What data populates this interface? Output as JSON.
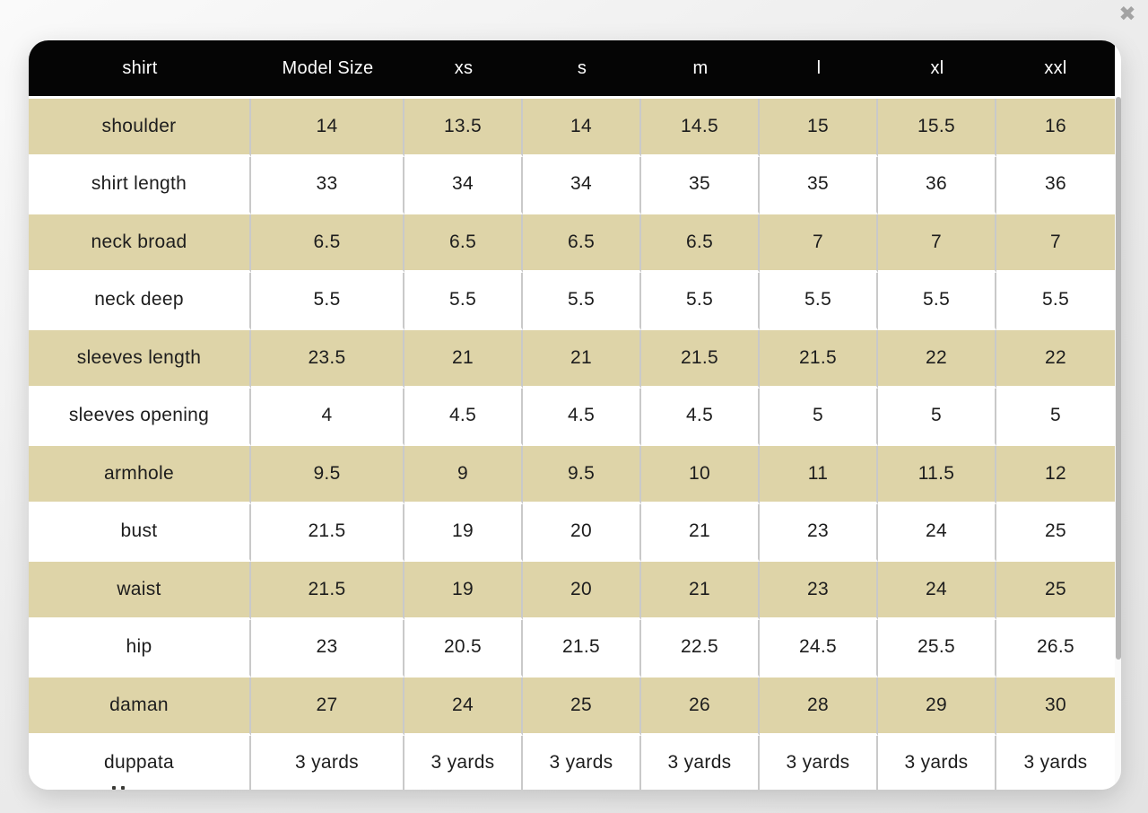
{
  "overlay": {
    "close_icon": "✖"
  },
  "size_chart": {
    "columns": [
      "shirt",
      "Model Size",
      "xs",
      "s",
      "m",
      "l",
      "xl",
      "xxl"
    ],
    "rows": [
      {
        "label": "shoulder",
        "values": [
          "14",
          "13.5",
          "14",
          "14.5",
          "15",
          "15.5",
          "16"
        ]
      },
      {
        "label": "shirt length",
        "values": [
          "33",
          "34",
          "34",
          "35",
          "35",
          "36",
          "36"
        ]
      },
      {
        "label": "neck broad",
        "values": [
          "6.5",
          "6.5",
          "6.5",
          "6.5",
          "7",
          "7",
          "7"
        ]
      },
      {
        "label": "neck deep",
        "values": [
          "5.5",
          "5.5",
          "5.5",
          "5.5",
          "5.5",
          "5.5",
          "5.5"
        ]
      },
      {
        "label": "sleeves length",
        "values": [
          "23.5",
          "21",
          "21",
          "21.5",
          "21.5",
          "22",
          "22"
        ]
      },
      {
        "label": "sleeves opening",
        "values": [
          "4",
          "4.5",
          "4.5",
          "4.5",
          "5",
          "5",
          "5"
        ]
      },
      {
        "label": "armhole",
        "values": [
          "9.5",
          "9",
          "9.5",
          "10",
          "11",
          "11.5",
          "12"
        ]
      },
      {
        "label": "bust",
        "values": [
          "21.5",
          "19",
          "20",
          "21",
          "23",
          "24",
          "25"
        ]
      },
      {
        "label": "waist",
        "values": [
          "21.5",
          "19",
          "20",
          "21",
          "23",
          "24",
          "25"
        ]
      },
      {
        "label": "hip",
        "values": [
          "23",
          "20.5",
          "21.5",
          "22.5",
          "24.5",
          "25.5",
          "26.5"
        ]
      },
      {
        "label": "daman",
        "values": [
          "27",
          "24",
          "25",
          "26",
          "28",
          "29",
          "30"
        ]
      },
      {
        "label": "duppata",
        "values": [
          "3 yards",
          "3 yards",
          "3 yards",
          "3 yards",
          "3 yards",
          "3 yards",
          "3 yards"
        ]
      }
    ]
  },
  "colors": {
    "header_bg": "#050505",
    "header_text": "#ffffff",
    "row_tan": "#ded4a8",
    "row_white": "#ffffff",
    "cell_text": "#1d1d1d",
    "column_divider": "#c9c9c9",
    "close_icon": "#a3a3a3",
    "scrollbar_thumb": "#b7b7b7"
  }
}
